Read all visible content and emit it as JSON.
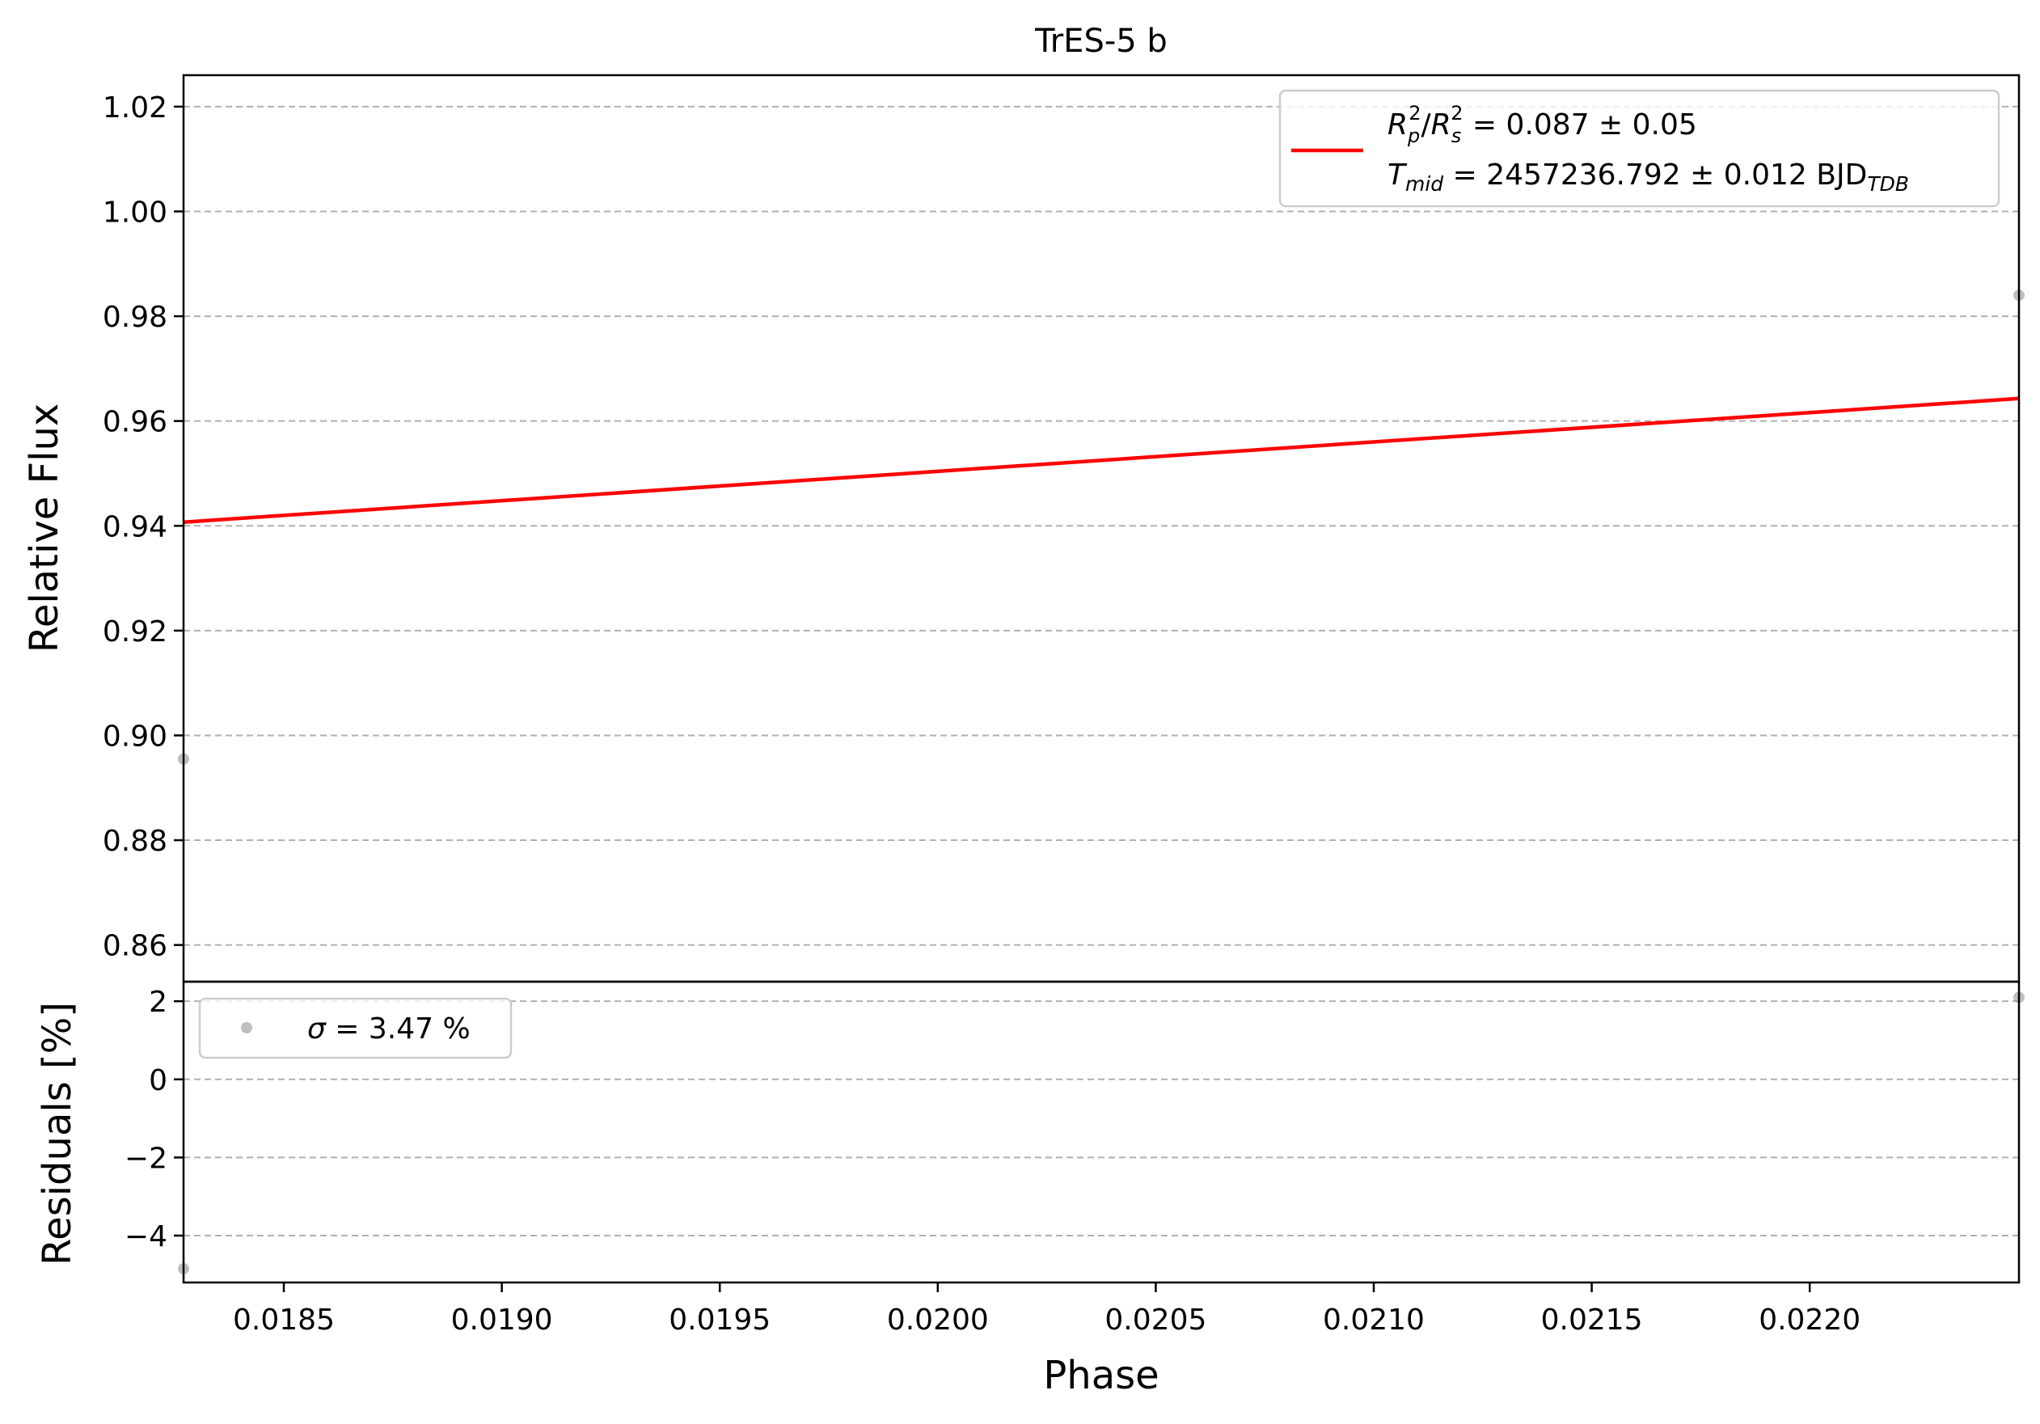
{
  "chart_data": [
    {
      "panel": "main",
      "type": "line",
      "title": "TrES-5 b",
      "xlabel": "",
      "ylabel": "Relative Flux",
      "xlim": [
        0.01827,
        0.02248
      ],
      "ylim": [
        0.853,
        1.026
      ],
      "yticks": [
        0.86,
        0.88,
        0.9,
        0.92,
        0.94,
        0.96,
        0.98,
        1.0,
        1.02
      ],
      "ytick_labels": [
        "0.86",
        "0.88",
        "0.90",
        "0.92",
        "0.94",
        "0.96",
        "0.98",
        "1.00",
        "1.02"
      ],
      "grid": "horizontal-dashed",
      "legend_position": "top-right",
      "series": [
        {
          "kind": "line",
          "color": "#ff0000",
          "x": [
            0.01827,
            0.02248
          ],
          "y": [
            0.9407,
            0.9643
          ]
        },
        {
          "kind": "scatter",
          "color": "#808080",
          "x": [
            0.01827,
            0.02248
          ],
          "y": [
            0.8955,
            0.984
          ]
        }
      ],
      "legend": {
        "line1_parts": [
          "R",
          "p",
          "2",
          "/",
          "R",
          "s",
          "2",
          " = 0.087 ± 0.05"
        ],
        "line2_parts": [
          "T",
          "mid",
          " = 2457236.792 ± 0.012 BJD",
          "TDB"
        ]
      }
    },
    {
      "panel": "residuals",
      "type": "scatter",
      "xlabel": "Phase",
      "ylabel": "Residuals [%]",
      "xlim": [
        0.01827,
        0.02248
      ],
      "ylim": [
        -5.2,
        2.5
      ],
      "xticks": [
        0.0185,
        0.019,
        0.0195,
        0.02,
        0.0205,
        0.021,
        0.0215,
        0.022
      ],
      "xtick_labels": [
        "0.0185",
        "0.0190",
        "0.0195",
        "0.0200",
        "0.0205",
        "0.0210",
        "0.0215",
        "0.0220"
      ],
      "yticks": [
        -4,
        -2,
        0,
        2
      ],
      "ytick_labels": [
        "−4",
        "−2",
        "0",
        "2"
      ],
      "grid": "horizontal-dashed",
      "legend_position": "top-left",
      "series": [
        {
          "kind": "scatter",
          "color": "#808080",
          "x": [
            0.01827,
            0.02248
          ],
          "y": [
            -4.85,
            2.1
          ]
        }
      ],
      "legend": {
        "parts": [
          "σ",
          " = 3.47 %"
        ]
      }
    }
  ]
}
